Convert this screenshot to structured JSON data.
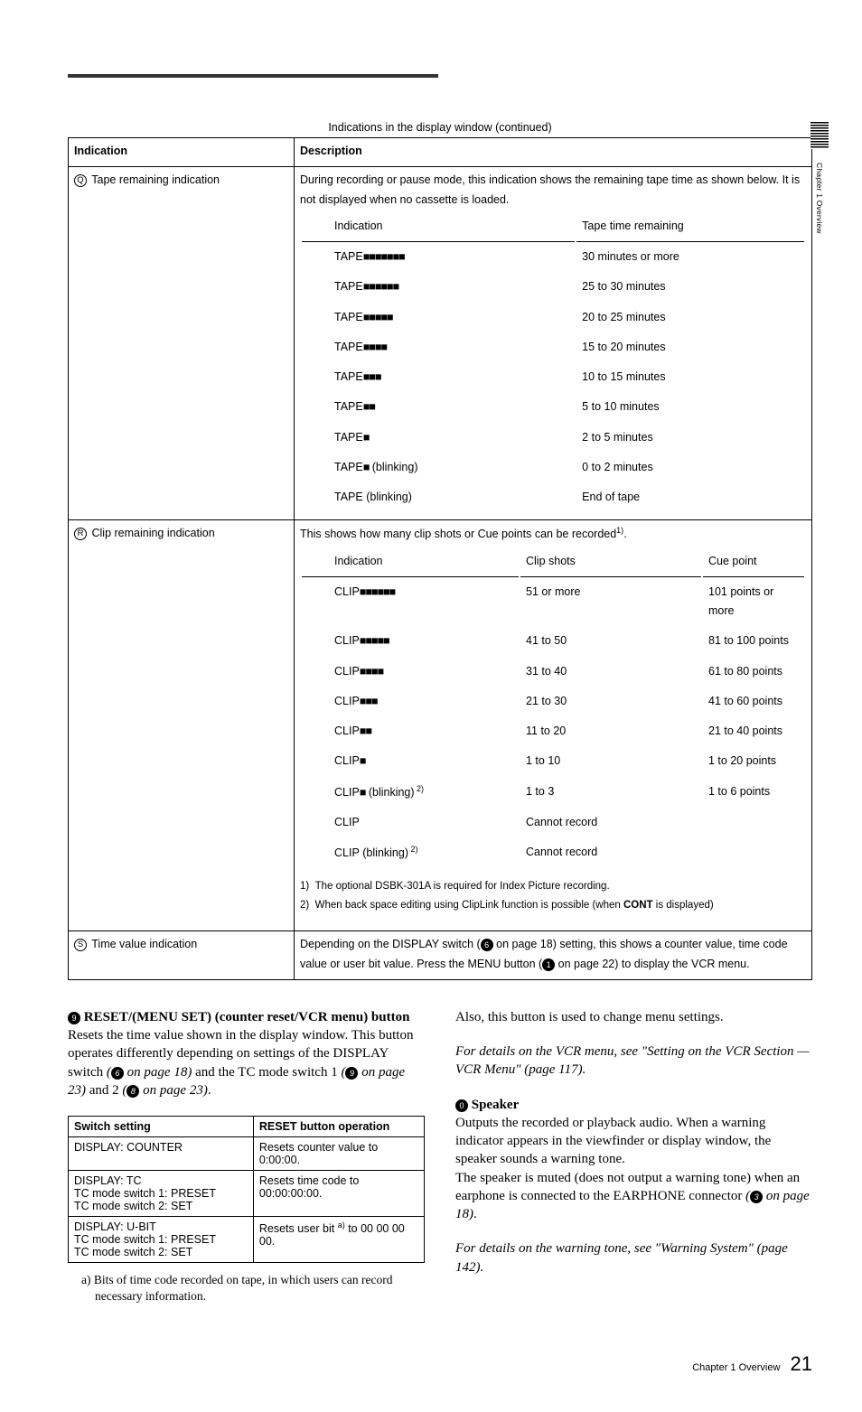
{
  "sideLabel": "Chapter 1 Overview",
  "tableCaption": "Indications in the display window (continued)",
  "headers": {
    "indication": "Indication",
    "description": "Description"
  },
  "rowQ": {
    "indicator": "Q",
    "label": "Tape remaining indication",
    "desc": "During recording or pause mode, this indication shows the remaining tape time as shown below. It is not displayed when no cassette is loaded.",
    "h1": "Indication",
    "h2": "Tape time remaining",
    "rows": [
      {
        "ind": "TAPE",
        "bars": 7,
        "blink": "",
        "time": "30 minutes or more"
      },
      {
        "ind": "TAPE",
        "bars": 6,
        "blink": "",
        "time": "25 to 30 minutes"
      },
      {
        "ind": "TAPE",
        "bars": 5,
        "blink": "",
        "time": "20 to 25 minutes"
      },
      {
        "ind": "TAPE",
        "bars": 4,
        "blink": "",
        "time": "15 to 20 minutes"
      },
      {
        "ind": "TAPE",
        "bars": 3,
        "blink": "",
        "time": "10 to 15 minutes"
      },
      {
        "ind": "TAPE",
        "bars": 2,
        "blink": "",
        "time": "5 to 10 minutes"
      },
      {
        "ind": "TAPE",
        "bars": 1,
        "blink": "",
        "time": "2 to 5 minutes"
      },
      {
        "ind": "TAPE",
        "bars": 1,
        "blink": " (blinking)",
        "time": "0 to 2 minutes"
      },
      {
        "ind": "TAPE",
        "bars": 0,
        "blink": " (blinking)",
        "time": "End of tape"
      }
    ]
  },
  "rowR": {
    "indicator": "R",
    "label": "Clip remaining indication",
    "desc_pre": "This shows how many clip shots or Cue points can be recorded",
    "desc_sup": "1)",
    "desc_post": ".",
    "h1": "Indication",
    "h2": "Clip shots",
    "h3": "Cue point",
    "rows": [
      {
        "ind": "CLIP",
        "bars": 6,
        "blink": "",
        "shots": "51 or more",
        "cue": "101 points or more"
      },
      {
        "ind": "CLIP",
        "bars": 5,
        "blink": "",
        "shots": "41 to 50",
        "cue": "81 to 100 points"
      },
      {
        "ind": "CLIP",
        "bars": 4,
        "blink": "",
        "shots": "31 to 40",
        "cue": "61 to 80 points"
      },
      {
        "ind": "CLIP",
        "bars": 3,
        "blink": "",
        "shots": "21 to 30",
        "cue": "41 to 60 points"
      },
      {
        "ind": "CLIP",
        "bars": 2,
        "blink": "",
        "shots": "11 to 20",
        "cue": "21 to 40 points"
      },
      {
        "ind": "CLIP",
        "bars": 1,
        "blink": "",
        "shots": "1 to 10",
        "cue": "1 to 20 points"
      },
      {
        "ind": "CLIP",
        "bars": 1,
        "blink": " (blinking)",
        "blinksup": " 2)",
        "shots": "1 to 3",
        "cue": "1 to 6 points"
      },
      {
        "ind": "CLIP",
        "bars": 0,
        "blink": "",
        "shots": "Cannot record",
        "cue": ""
      },
      {
        "ind": "CLIP",
        "bars": 0,
        "blink": " (blinking)",
        "blinksup": " 2)",
        "shots": "Cannot record",
        "cue": ""
      }
    ],
    "fn1": "The optional DSBK-301A is required for Index Picture recording.",
    "fn2_pre": "When back space editing using ClipLink function is possible (when ",
    "fn2_bold": "CONT",
    "fn2_post": " is displayed)"
  },
  "rowS": {
    "indicator": "S",
    "label": "Time value indication",
    "desc_pre": "Depending on  the DISPLAY switch (",
    "desc_ref1": "6",
    "desc_mid1": " on page 18) setting, this shows a counter value, time code value or user bit value. Press the MENU button (",
    "desc_ref2": "1",
    "desc_post": " on page 22) to display the VCR menu."
  },
  "item9": {
    "num": "9",
    "title": "RESET/(MENU SET) (counter reset/VCR menu)  button",
    "p1_pre": "Resets the time value shown in the display window. This button operates differently depending on settings of the DISPLAY switch ",
    "ref1_txt": "(",
    "ref1_num": "6",
    "ref1_post": " on page 18)",
    "mid1": " and the TC mode switch 1 ",
    "ref2_txt": "(",
    "ref2_num": "9",
    "ref2_post": " on page 23)",
    "mid2": " and 2 ",
    "ref3_txt": "(",
    "ref3_num": "8",
    "ref3_post": " on page 23)",
    "tail": ".",
    "table": {
      "h1": "Switch setting",
      "h2": "RESET button operation",
      "rows": [
        {
          "s": "DISPLAY: COUNTER",
          "r": "Resets counter value to 0:00:00."
        },
        {
          "s": "DISPLAY: TC\nTC mode switch 1: PRESET\nTC mode switch 2: SET",
          "r": "Resets time code to 00:00:00:00."
        },
        {
          "s": "DISPLAY: U-BIT\nTC mode switch 1: PRESET\nTC mode switch 2: SET",
          "r_pre": "Resets user bit ",
          "r_sup": "a)",
          "r_post": " to 00 00 00 00."
        }
      ]
    },
    "footnote": "a) Bits of time code recorded on tape, in which users can record necessary information."
  },
  "rightCol": {
    "alsoLine": "Also, this button is used to change menu settings.",
    "italic1": "For details on the VCR menu, see \"Setting on the VCR Section —VCR Menu\" (page 117).",
    "speaker": {
      "num": "0",
      "title": "Speaker",
      "p1_pre": "Outputs the recorded or playback audio. When a warning indicator appears in the viewfinder or display window, the speaker sounds a warning tone.\nThe speaker is muted (does not output a warning tone) when an earphone is connected to the EARPHONE connector ",
      "ref_txt": "(",
      "ref_num": "3",
      "ref_post": " on page 18)",
      "tail": ".",
      "italic": "For details on the warning tone, see \"Warning System\" (page 142)."
    }
  },
  "footer": {
    "chapter": "Chapter 1 Overview",
    "page": "21"
  }
}
